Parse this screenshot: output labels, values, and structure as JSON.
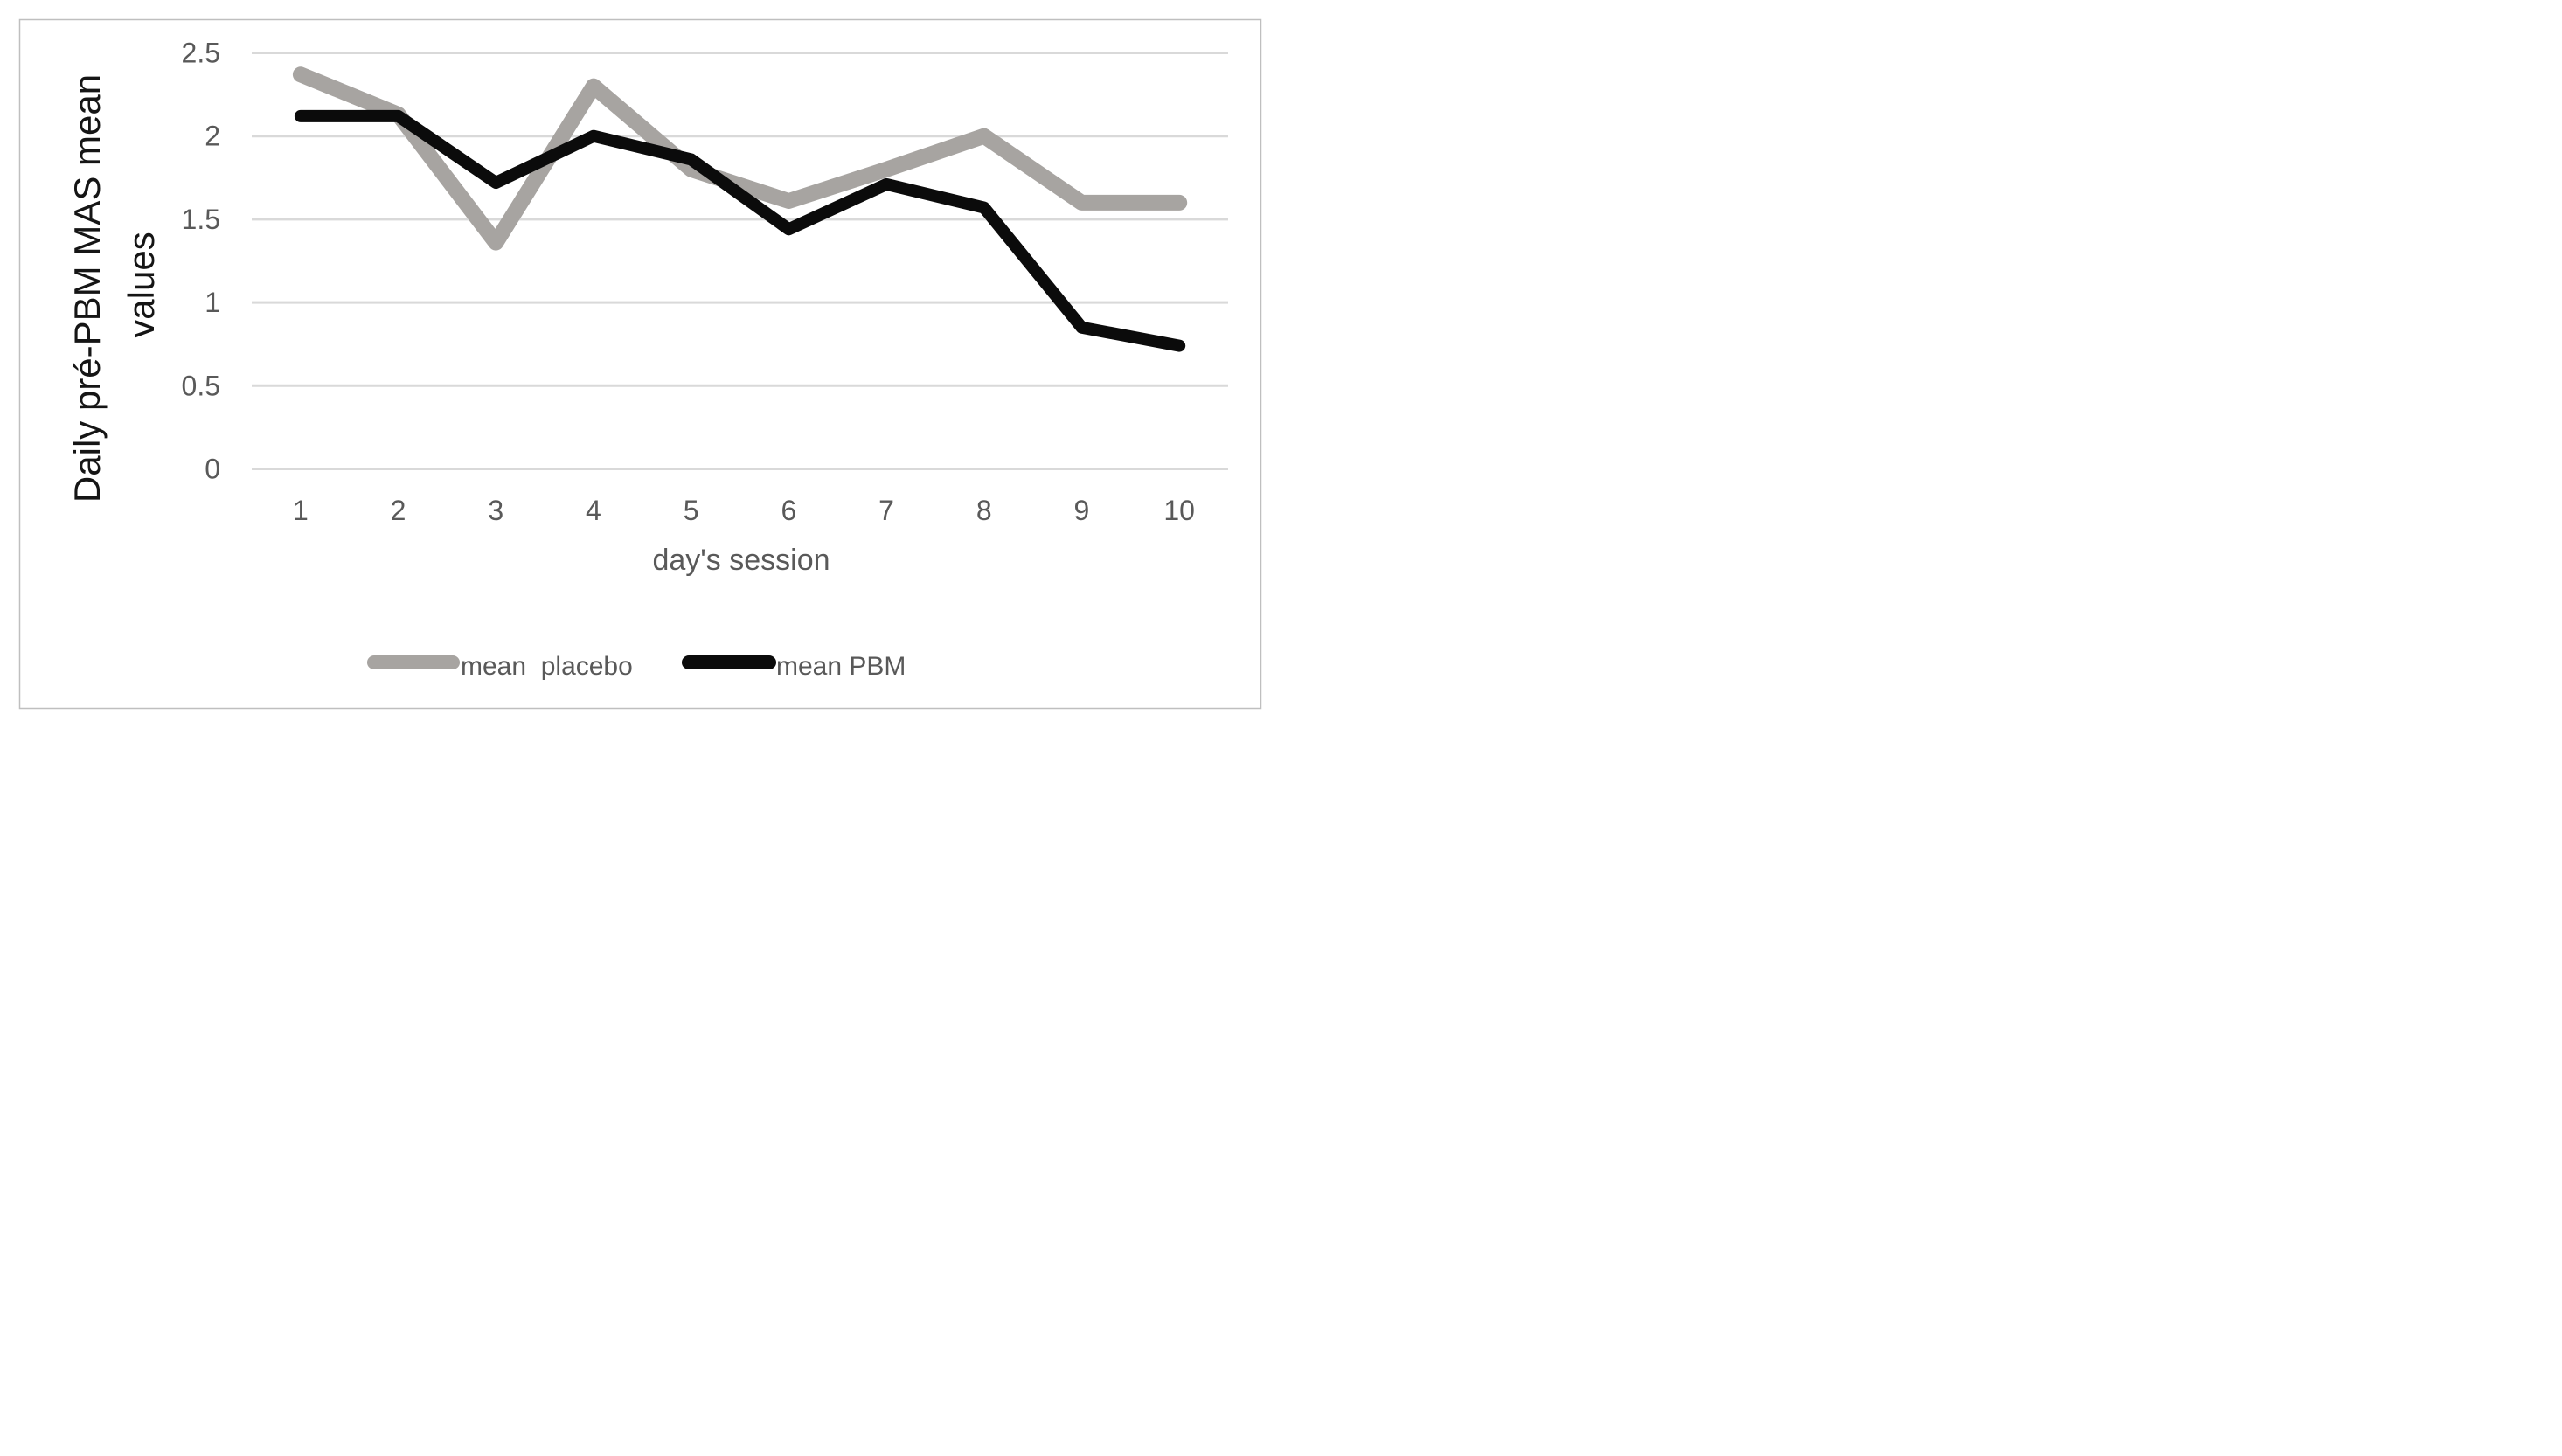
{
  "window": {
    "background": "#ffffff"
  },
  "chart_data": {
    "type": "line",
    "title": "",
    "categories": [
      "1",
      "2",
      "3",
      "4",
      "5",
      "6",
      "7",
      "8",
      "9",
      "10"
    ],
    "x": [
      1,
      2,
      3,
      4,
      5,
      6,
      7,
      8,
      9,
      10
    ],
    "series": [
      {
        "name": "mean  placebo",
        "color": "#a7a4a1",
        "values": [
          2.37,
          2.13,
          1.36,
          2.3,
          1.8,
          1.61,
          1.8,
          2.0,
          1.6,
          1.6
        ]
      },
      {
        "name": "mean PBM",
        "color": "#0b0b0b",
        "values": [
          2.12,
          2.12,
          1.72,
          2.0,
          1.86,
          1.44,
          1.71,
          1.57,
          0.85,
          0.74
        ]
      }
    ],
    "xlabel": "day's session",
    "ylabel": "Daily pré-PBM MAS mean values",
    "ylabel_line1": "Daily pré-PBM MAS mean",
    "ylabel_line2": "values",
    "ylim": [
      0,
      2.5
    ],
    "ytick_values": [
      0,
      0.5,
      1,
      1.5,
      2,
      2.5
    ],
    "ytick_labels": [
      "0",
      "0.5",
      "1",
      "1.5",
      "2",
      "2.5"
    ],
    "grid": "horizontal-only",
    "legend_position": "bottom",
    "colors": {
      "gridline": "#d9d9d9",
      "figure_border": "#bfbfbf",
      "tick_text": "#595959",
      "x_title_text": "#595959",
      "y_title_text": "#151515",
      "legend_text": "#595959",
      "plot_background": "#ffffff"
    }
  }
}
